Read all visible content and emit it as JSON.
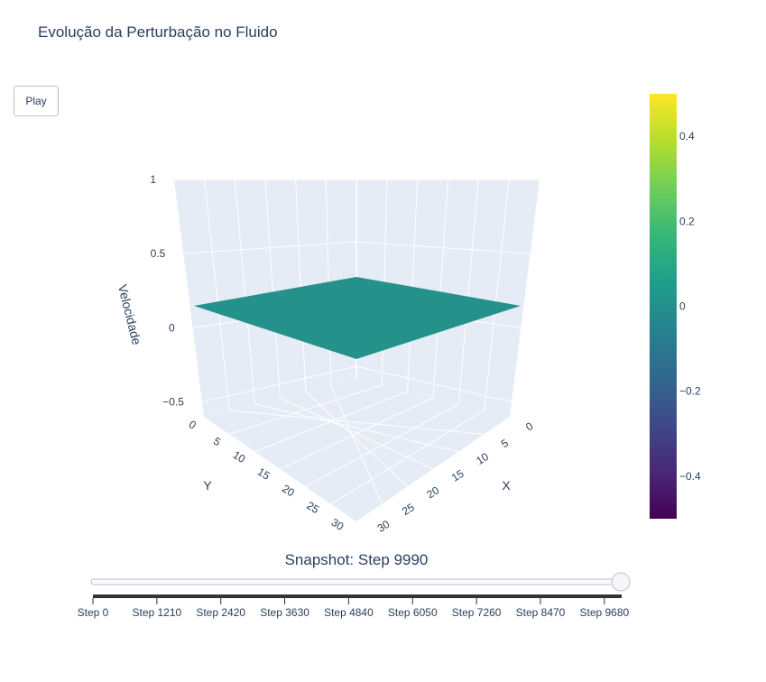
{
  "play_label": "Play",
  "colors": {
    "scene_bg": "#e5ecf6",
    "grid": "#ffffff",
    "surface": "#25918b",
    "text": "#2a3f5f",
    "slider_rail": "#b8c0d6",
    "colorscale": [
      "#440154",
      "#482878",
      "#3e4989",
      "#31688e",
      "#26828e",
      "#1f9e89",
      "#35b779",
      "#6ece58",
      "#b5de2b",
      "#fde725"
    ]
  },
  "chart_data": {
    "type": "surface",
    "title": "Evolução da Perturbação no Fluido",
    "xlabel": "X",
    "ylabel": "Y",
    "zlabel": "Velocidade",
    "x_ticks": [
      "0",
      "5",
      "10",
      "15",
      "20",
      "25",
      "30"
    ],
    "y_ticks": [
      "0",
      "5",
      "10",
      "15",
      "20",
      "25",
      "30"
    ],
    "z_ticks": [
      "1",
      "0.5",
      "0",
      "−0.5"
    ],
    "xlim": [
      0,
      31
    ],
    "ylim": [
      0,
      31
    ],
    "zlim": [
      -0.6,
      1
    ],
    "surface_value": 0,
    "colorbar": {
      "range": [
        -0.5,
        0.5
      ],
      "ticks": [
        0.4,
        0.2,
        0,
        -0.2,
        -0.4
      ],
      "tick_labels": [
        "0.4",
        "0.2",
        "0",
        "−0.2",
        "−0.4"
      ]
    },
    "slider": {
      "current_label": "Snapshot: Step 9990",
      "current_step": 9990,
      "max_step": 9990,
      "tick_labels": [
        "Step 0",
        "Step 1210",
        "Step 2420",
        "Step 3630",
        "Step 4840",
        "Step 6050",
        "Step 7260",
        "Step 8470",
        "Step 9680"
      ]
    }
  }
}
